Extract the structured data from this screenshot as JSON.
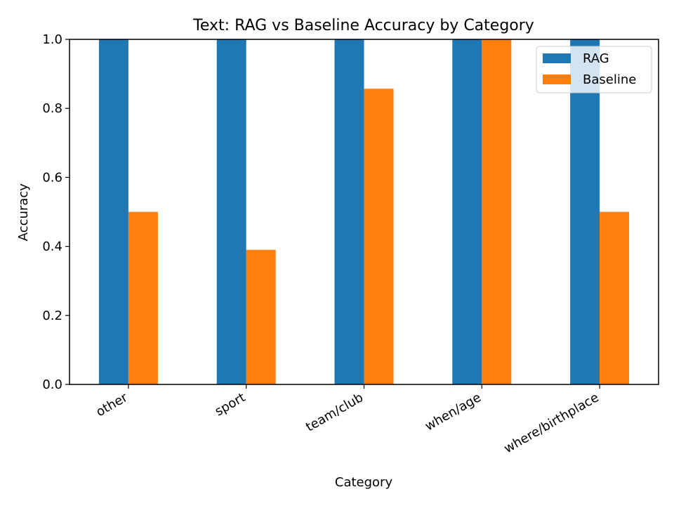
{
  "chart_data": {
    "type": "bar",
    "title": "Text: RAG vs Baseline Accuracy by Category",
    "xlabel": "Category",
    "ylabel": "Accuracy",
    "ylim": [
      0,
      1.0
    ],
    "yticks": [
      "0.0",
      "0.2",
      "0.4",
      "0.6",
      "0.8",
      "1.0"
    ],
    "categories": [
      "other",
      "sport",
      "team/club",
      "when/age",
      "where/birthplace"
    ],
    "series": [
      {
        "name": "RAG",
        "color": "#1f77b4",
        "values": [
          1.0,
          1.0,
          1.0,
          1.0,
          1.0
        ]
      },
      {
        "name": "Baseline",
        "color": "#ff7f0e",
        "values": [
          0.5,
          0.39,
          0.857,
          1.0,
          0.5
        ]
      }
    ],
    "grid": false,
    "legend_position": "top-right"
  }
}
